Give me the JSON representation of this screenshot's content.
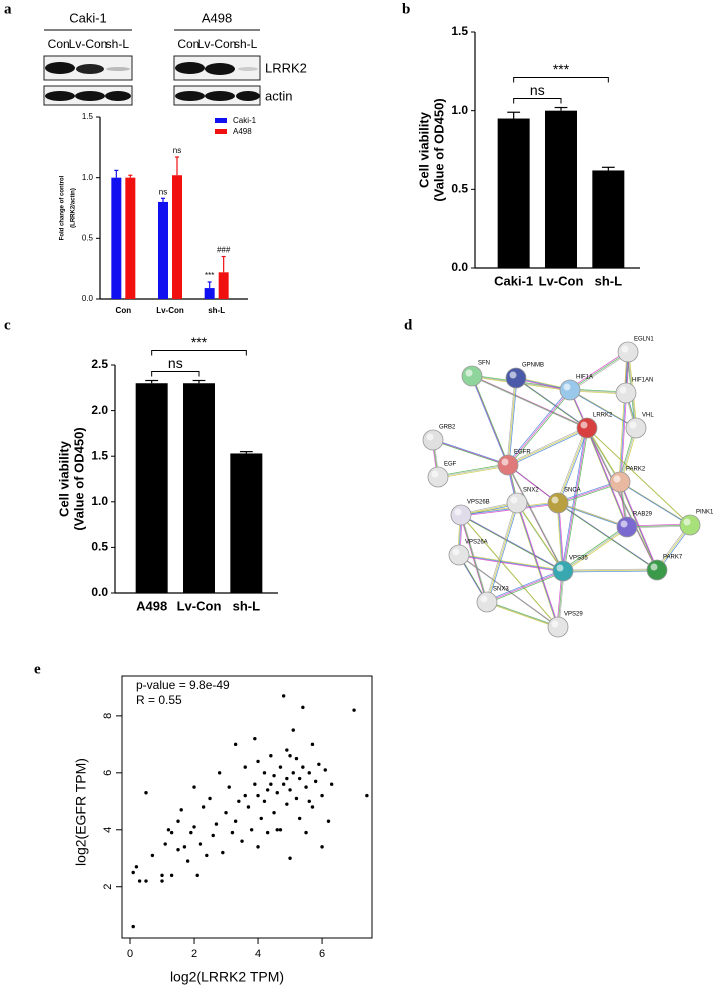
{
  "panel_labels": [
    "a",
    "b",
    "c",
    "d",
    "e"
  ],
  "blot": {
    "cell_lines": [
      "Caki-1",
      "A498"
    ],
    "lanes": [
      "Con",
      "Lv-Con",
      "sh-L"
    ],
    "proteins": [
      "LRRK2",
      "actin"
    ]
  },
  "network": {
    "nodes": [
      {
        "label": "SFN"
      },
      {
        "label": "GPNMB"
      },
      {
        "label": "HIF1A"
      },
      {
        "label": "EGLN1"
      },
      {
        "label": "HIF1AN"
      },
      {
        "label": "VHL"
      },
      {
        "label": "GRB2"
      },
      {
        "label": "LRRK2"
      },
      {
        "label": "EGF"
      },
      {
        "label": "EGFR"
      },
      {
        "label": "PARK2"
      },
      {
        "label": "SNX2"
      },
      {
        "label": "SNCA"
      },
      {
        "label": "VPS26B"
      },
      {
        "label": "RAB29"
      },
      {
        "label": "PINK1"
      },
      {
        "label": "VPS26A"
      },
      {
        "label": "VPS35"
      },
      {
        "label": "PARK7"
      },
      {
        "label": "SNX3"
      },
      {
        "label": "VPS29"
      }
    ]
  },
  "chart_data": [
    {
      "type": "bar",
      "y_label": [
        "Fold change of control",
        "(LRRK2/actin)"
      ],
      "categories": [
        "Con",
        "Lv-Con",
        "sh-L"
      ],
      "series": [
        {
          "name": "Caki-1",
          "color": "#1010f0",
          "values": [
            1.0,
            0.8,
            0.09
          ],
          "errors": [
            0.06,
            0.03,
            0.05
          ],
          "annotations": [
            null,
            "ns",
            "***"
          ]
        },
        {
          "name": "A498",
          "color": "#f01010",
          "values": [
            1.0,
            1.02,
            0.22
          ],
          "errors": [
            0.02,
            0.15,
            0.13
          ],
          "annotations": [
            null,
            "ns",
            "###"
          ]
        }
      ],
      "ylim": [
        0,
        1.5
      ],
      "yticks": [
        {
          "value": 0,
          "label": "0.0"
        },
        {
          "value": 0.5,
          "label": "0.5"
        },
        {
          "value": 1,
          "label": "1.0"
        },
        {
          "value": 1.5,
          "label": "1.5"
        }
      ],
      "legend": "top-right"
    },
    {
      "type": "bar",
      "y_label": [
        "Cell viability",
        "(Value of OD450)"
      ],
      "categories": [
        "Caki-1",
        "Lv-Con",
        "sh-L"
      ],
      "values": [
        0.95,
        1.0,
        0.62
      ],
      "errors": [
        0.04,
        0.02,
        0.02
      ],
      "color": "#000000",
      "brackets": [
        {
          "text": "***",
          "from": "Caki-1",
          "to": "sh-L"
        },
        {
          "text": "ns",
          "from": "Caki-1",
          "to": "Lv-Con"
        }
      ],
      "ylim": [
        0,
        1.5
      ],
      "yticks": [
        {
          "value": 0,
          "label": "0.0"
        },
        {
          "value": 0.5,
          "label": "0.5"
        },
        {
          "value": 1,
          "label": "1.0"
        },
        {
          "value": 1.5,
          "label": "1.5"
        }
      ]
    },
    {
      "type": "bar",
      "y_label": [
        "Cell viability",
        "(Value of OD450)"
      ],
      "categories": [
        "A498",
        "Lv-Con",
        "sh-L"
      ],
      "values": [
        2.3,
        2.3,
        1.53
      ],
      "errors": [
        0.03,
        0.03,
        0.02
      ],
      "color": "#000000",
      "brackets": [
        {
          "text": "***",
          "from": "A498",
          "to": "sh-L"
        },
        {
          "text": "ns",
          "from": "A498",
          "to": "Lv-Con"
        }
      ],
      "ylim": [
        0,
        2.5
      ],
      "yticks": [
        {
          "value": 0,
          "label": "0.0"
        },
        {
          "value": 0.5,
          "label": "0.5"
        },
        {
          "value": 1,
          "label": "1.0"
        },
        {
          "value": 1.5,
          "label": "1.5"
        },
        {
          "value": 2,
          "label": "2.0"
        },
        {
          "value": 2.5,
          "label": "2.5"
        }
      ]
    },
    {
      "type": "scatter",
      "x_label": "log2(LRRK2 TPM)",
      "y_label": "log2(EGFR TPM)",
      "annotations": [
        "p-value = 9.8e-49",
        "R = 0.55"
      ],
      "color": "#000000",
      "x": [
        0.1,
        0.1,
        0.2,
        0.3,
        0.5,
        0.5,
        0.7,
        1.0,
        1.0,
        1.1,
        1.2,
        1.3,
        1.3,
        1.5,
        1.6,
        1.7,
        1.8,
        1.9,
        2.0,
        2.1,
        2.2,
        2.3,
        2.4,
        2.5,
        2.6,
        2.7,
        2.8,
        2.9,
        3.0,
        3.1,
        3.2,
        3.3,
        3.3,
        3.4,
        3.5,
        3.6,
        3.7,
        3.8,
        3.9,
        3.9,
        4.0,
        4.0,
        4.1,
        4.2,
        4.2,
        4.3,
        4.4,
        4.4,
        4.5,
        4.5,
        4.6,
        4.7,
        4.7,
        4.8,
        4.8,
        4.9,
        4.9,
        5.0,
        5.0,
        5.1,
        5.1,
        5.2,
        5.2,
        5.3,
        5.3,
        5.4,
        5.4,
        5.5,
        5.5,
        5.6,
        5.7,
        5.7,
        5.8,
        5.9,
        6.0,
        6.0,
        6.1,
        6.2,
        6.3,
        7.0,
        7.4,
        4.6,
        4.0,
        3.6,
        4.3,
        5.0,
        5.6,
        4.9,
        2.0,
        1.5
      ],
      "y": [
        0.6,
        2.5,
        2.7,
        2.2,
        2.2,
        5.3,
        3.1,
        2.2,
        2.4,
        3.5,
        4.0,
        2.4,
        3.9,
        4.3,
        4.7,
        3.4,
        2.9,
        3.9,
        4.1,
        2.4,
        3.5,
        4.8,
        3.1,
        5.1,
        3.8,
        4.2,
        6.0,
        3.2,
        4.6,
        5.5,
        3.9,
        7.0,
        4.3,
        5.0,
        3.6,
        6.2,
        4.8,
        4.0,
        5.6,
        7.2,
        3.4,
        5.2,
        4.4,
        6.0,
        5.0,
        3.9,
        5.6,
        6.6,
        4.6,
        5.9,
        5.3,
        4.0,
        6.2,
        5.6,
        8.7,
        4.9,
        6.8,
        5.4,
        3.0,
        6.0,
        7.5,
        5.1,
        6.5,
        5.8,
        4.4,
        8.3,
        6.2,
        5.5,
        3.9,
        6.0,
        7.0,
        4.8,
        5.7,
        6.3,
        5.2,
        3.4,
        6.1,
        4.3,
        5.6,
        8.2,
        5.2,
        4.0,
        6.4,
        5.2,
        5.4,
        6.6,
        5.0,
        5.8,
        5.5,
        3.3
      ],
      "xlim": [
        -0.25,
        7.56
      ],
      "ylim": [
        0.2,
        9.4
      ],
      "xticks": [
        0,
        2,
        4,
        6
      ],
      "yticks": [
        2,
        4,
        6,
        8
      ]
    }
  ]
}
